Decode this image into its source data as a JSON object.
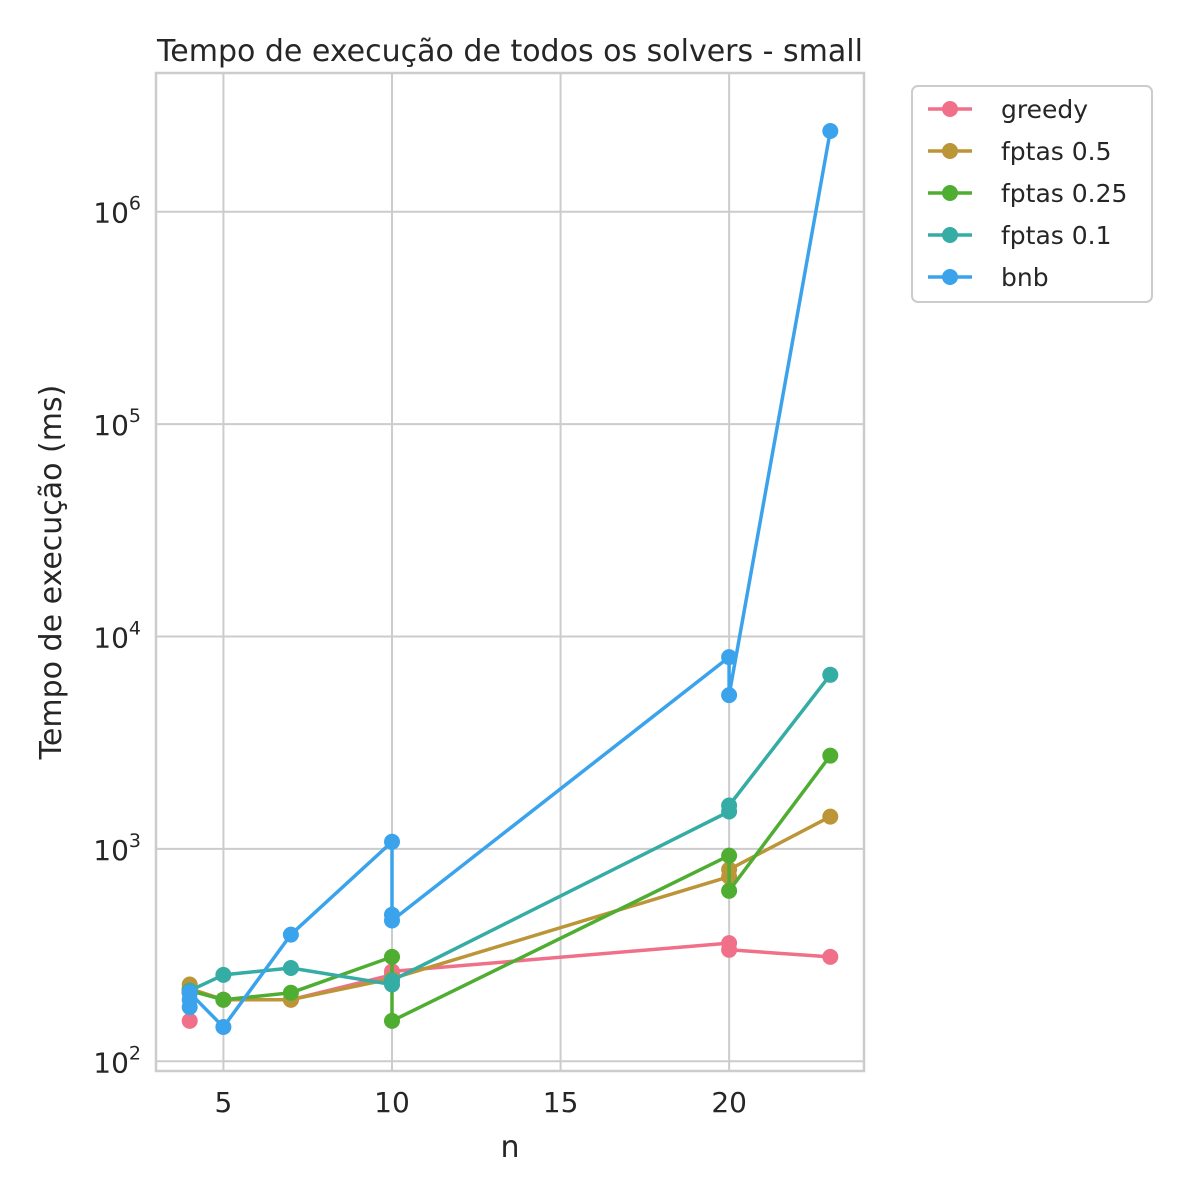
{
  "chart_data": {
    "type": "line",
    "title": "Tempo de execução de todos os solvers - small",
    "xlabel": "n",
    "ylabel": "Tempo de execução (ms)",
    "xlim": [
      3,
      24
    ],
    "ylim": [
      90,
      4500000
    ],
    "yscale": "log",
    "grid": true,
    "legend_placement": "outside-top-right",
    "x_ticks": [
      {
        "value": 5,
        "label": "5"
      },
      {
        "value": 10,
        "label": "10"
      },
      {
        "value": 15,
        "label": "15"
      },
      {
        "value": 20,
        "label": "20"
      }
    ],
    "y_ticks": [
      {
        "value": 100,
        "base": "10",
        "exp": "2"
      },
      {
        "value": 1000,
        "base": "10",
        "exp": "3"
      },
      {
        "value": 10000,
        "base": "10",
        "exp": "4"
      },
      {
        "value": 100000,
        "base": "10",
        "exp": "5"
      },
      {
        "value": 1000000,
        "base": "10",
        "exp": "6"
      }
    ],
    "series": [
      {
        "name": "greedy",
        "color": "#f0708a",
        "points": [
          [
            4,
            155
          ],
          [
            4,
            210
          ],
          [
            4,
            220
          ],
          [
            5,
            195
          ],
          [
            7,
            195
          ],
          [
            10,
            255
          ],
          [
            10,
            265
          ],
          [
            20,
            360
          ],
          [
            20,
            335
          ],
          [
            23,
            310
          ]
        ]
      },
      {
        "name": "fptas 0.5",
        "color": "#bb9538",
        "points": [
          [
            4,
            230
          ],
          [
            4,
            210
          ],
          [
            4,
            220
          ],
          [
            5,
            195
          ],
          [
            7,
            195
          ],
          [
            10,
            245
          ],
          [
            20,
            740
          ],
          [
            20,
            800
          ],
          [
            23,
            1420
          ]
        ]
      },
      {
        "name": "fptas 0.25",
        "color": "#4fad32",
        "points": [
          [
            4,
            215
          ],
          [
            5,
            195
          ],
          [
            7,
            210
          ],
          [
            10,
            310
          ],
          [
            10,
            155
          ],
          [
            20,
            930
          ],
          [
            20,
            635
          ],
          [
            23,
            2750
          ]
        ]
      },
      {
        "name": "fptas 0.1",
        "color": "#35aca4",
        "points": [
          [
            4,
            215
          ],
          [
            5,
            255
          ],
          [
            7,
            275
          ],
          [
            10,
            230
          ],
          [
            10,
            240
          ],
          [
            20,
            1500
          ],
          [
            20,
            1600
          ],
          [
            23,
            6600
          ]
        ]
      },
      {
        "name": "bnb",
        "color": "#3ba3ec",
        "points": [
          [
            4,
            180
          ],
          [
            4,
            195
          ],
          [
            4,
            210
          ],
          [
            5,
            145
          ],
          [
            7,
            395
          ],
          [
            10,
            1080
          ],
          [
            10,
            490
          ],
          [
            10,
            460
          ],
          [
            20,
            8000
          ],
          [
            20,
            5300
          ],
          [
            23,
            2400000
          ]
        ]
      }
    ]
  }
}
